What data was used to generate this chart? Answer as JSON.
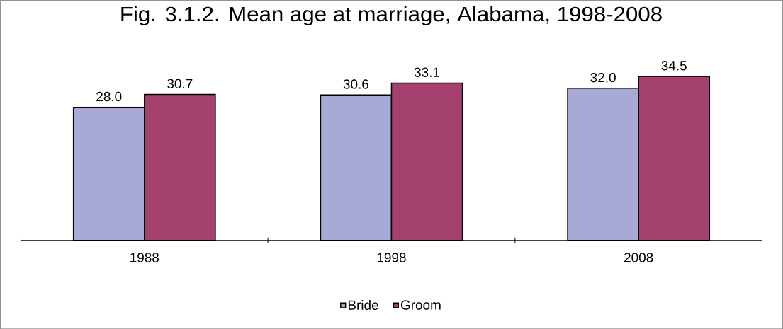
{
  "chart_data": {
    "type": "bar",
    "title": "Fig. 3.1.2. Mean age at marriage, Alabama, 1998-2008",
    "categories": [
      "1988",
      "1998",
      "2008"
    ],
    "series": [
      {
        "name": "Bride",
        "color": "#a9a9d6",
        "values": [
          28.0,
          30.6,
          32.0
        ],
        "value_labels": [
          "28.0",
          "30.6",
          "32.0"
        ]
      },
      {
        "name": "Groom",
        "color": "#a5416f",
        "values": [
          30.7,
          33.1,
          34.5
        ],
        "value_labels": [
          "30.7",
          "33.1",
          "34.5"
        ]
      }
    ],
    "legend": "bottom"
  }
}
